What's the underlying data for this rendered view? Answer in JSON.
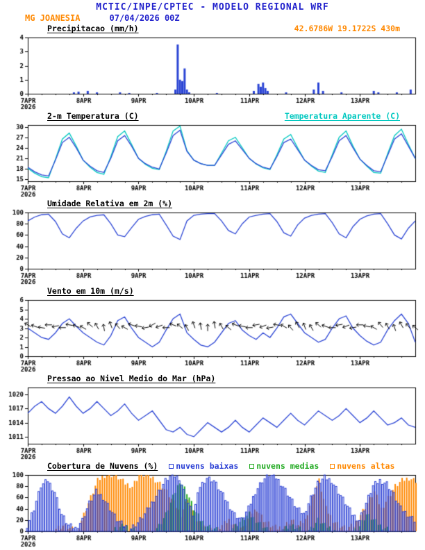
{
  "header": {
    "title": "MCTIC/INPE/CPTEC - MODELO REGIONAL WRF",
    "station": "MG JOANESIA",
    "run": "07/04/2026 00Z",
    "coords": "42.6786W 19.1722S 430m"
  },
  "colors": {
    "header_blue": "#2222cc",
    "station_orange": "#ff8800",
    "coords_orange": "#ff8800",
    "line_blue": "#2a44d4",
    "apparent_cyan": "#00c8c0",
    "cloud_green": "#22aa22",
    "cloud_orange": "#ff8800",
    "barb_black": "#000000"
  },
  "x_axis": {
    "hours": 168,
    "step": 3,
    "ticks": [
      {
        "h": 0,
        "label": "7APR",
        "sub": "2026"
      },
      {
        "h": 24,
        "label": "8APR"
      },
      {
        "h": 48,
        "label": "9APR"
      },
      {
        "h": 72,
        "label": "10APR"
      },
      {
        "h": 96,
        "label": "11APR"
      },
      {
        "h": 120,
        "label": "12APR"
      },
      {
        "h": 144,
        "label": "13APR"
      }
    ]
  },
  "chart_data": [
    {
      "type": "bar",
      "title": "Precipitacao (mm/h)",
      "ylabel": "mm/h",
      "ylim": [
        0,
        4
      ],
      "yticks": [
        0,
        1,
        2,
        3,
        4
      ],
      "color": "#2a44d4",
      "points": [
        [
          20,
          0.1
        ],
        [
          22,
          0.15
        ],
        [
          26,
          0.2
        ],
        [
          30,
          0.1
        ],
        [
          40,
          0.1
        ],
        [
          44,
          0.05
        ],
        [
          56,
          0.05
        ],
        [
          64,
          0.3
        ],
        [
          65,
          3.5
        ],
        [
          66,
          1.0
        ],
        [
          67,
          0.9
        ],
        [
          68,
          1.8
        ],
        [
          69,
          0.3
        ],
        [
          70,
          0.1
        ],
        [
          82,
          0.05
        ],
        [
          98,
          0.2
        ],
        [
          100,
          0.7
        ],
        [
          101,
          0.5
        ],
        [
          102,
          0.8
        ],
        [
          103,
          0.4
        ],
        [
          104,
          0.2
        ],
        [
          112,
          0.1
        ],
        [
          124,
          0.3
        ],
        [
          126,
          0.8
        ],
        [
          128,
          0.2
        ],
        [
          136,
          0.1
        ],
        [
          150,
          0.2
        ],
        [
          152,
          0.1
        ],
        [
          160,
          0.1
        ],
        [
          166,
          0.3
        ]
      ]
    },
    {
      "type": "line",
      "title": "2-m Temperatura (C)",
      "ylabel": "C",
      "ylim": [
        14.5,
        30.5
      ],
      "yticks": [
        15,
        18,
        21,
        24,
        27,
        30
      ],
      "series": [
        {
          "name": "2-m Temperatura (C)",
          "color": "#2a44d4",
          "values": [
            18.5,
            17.2,
            16.3,
            16.0,
            20.5,
            25.5,
            27.0,
            24.0,
            20.5,
            18.8,
            17.5,
            17.0,
            21.0,
            26.0,
            27.5,
            24.5,
            21.0,
            19.5,
            18.5,
            18.0,
            22.5,
            27.5,
            29.0,
            23.0,
            20.5,
            19.5,
            19.0,
            19.0,
            22.0,
            25.0,
            26.0,
            23.5,
            21.0,
            19.5,
            18.5,
            18.0,
            21.5,
            25.5,
            26.5,
            23.5,
            20.5,
            19.0,
            17.8,
            17.5,
            21.5,
            26.0,
            27.5,
            24.0,
            20.8,
            19.0,
            17.5,
            17.2,
            21.8,
            26.5,
            28.0,
            24.5,
            21.0
          ]
        },
        {
          "name": "Temperatura Aparente (C)",
          "color": "#00c8c0",
          "values": [
            18.2,
            16.8,
            15.8,
            15.5,
            20.8,
            26.5,
            28.2,
            24.5,
            20.5,
            18.5,
            17.0,
            16.5,
            21.5,
            27.2,
            28.8,
            25.0,
            21.0,
            19.3,
            18.2,
            17.8,
            23.0,
            28.8,
            30.2,
            23.2,
            20.5,
            19.5,
            19.0,
            19.0,
            22.5,
            26.0,
            27.0,
            24.0,
            21.0,
            19.4,
            18.3,
            17.8,
            22.0,
            26.5,
            27.8,
            24.0,
            20.5,
            18.8,
            17.4,
            17.0,
            22.0,
            27.0,
            28.8,
            24.5,
            20.8,
            18.8,
            17.0,
            16.8,
            22.3,
            27.5,
            29.3,
            25.0,
            21.0
          ]
        }
      ]
    },
    {
      "type": "line",
      "title": "Umidade Relativa em 2m (%)",
      "ylabel": "%",
      "ylim": [
        0,
        100
      ],
      "yticks": [
        0,
        20,
        40,
        60,
        80,
        100
      ],
      "series": [
        {
          "name": "Umidade Relativa",
          "color": "#2a44d4",
          "values": [
            85,
            92,
            96,
            97,
            84,
            62,
            55,
            72,
            85,
            92,
            95,
            96,
            80,
            60,
            57,
            73,
            88,
            93,
            96,
            97,
            78,
            58,
            52,
            85,
            95,
            97,
            98,
            98,
            85,
            68,
            62,
            80,
            92,
            95,
            97,
            98,
            84,
            64,
            58,
            78,
            90,
            95,
            97,
            98,
            82,
            62,
            55,
            75,
            88,
            94,
            97,
            98,
            80,
            60,
            53,
            72,
            85
          ]
        }
      ]
    },
    {
      "type": "wind",
      "title": "Vento em 10m (m/s)",
      "ylabel": "m/s",
      "ylim": [
        0,
        6
      ],
      "yticks": [
        0,
        1,
        2,
        3,
        4,
        5,
        6
      ],
      "series": [
        {
          "name": "Vento em 10m",
          "color": "#2a44d4",
          "values": [
            3.0,
            2.5,
            2.0,
            1.8,
            2.5,
            3.5,
            4.0,
            3.2,
            2.5,
            2.0,
            1.5,
            1.2,
            2.2,
            3.8,
            4.2,
            3.0,
            2.0,
            1.5,
            1.0,
            1.5,
            2.8,
            4.0,
            4.5,
            2.5,
            1.8,
            1.2,
            1.0,
            1.5,
            2.5,
            3.5,
            3.8,
            2.8,
            2.2,
            1.8,
            2.5,
            2.0,
            3.0,
            4.2,
            4.5,
            3.5,
            2.5,
            2.0,
            1.5,
            1.8,
            3.0,
            4.0,
            4.3,
            3.0,
            2.2,
            1.6,
            1.2,
            1.5,
            2.8,
            3.8,
            4.5,
            3.5,
            1.5
          ]
        }
      ],
      "barbs": {
        "y": 3.2,
        "color": "#000000",
        "dirs": [
          120,
          110,
          100,
          90,
          80,
          90,
          100,
          110,
          120,
          130,
          150,
          170,
          160,
          140,
          120,
          110,
          100,
          80,
          60,
          70,
          90,
          110,
          130,
          150,
          160,
          170,
          180,
          170,
          150,
          130,
          110,
          100,
          90,
          80,
          70,
          80,
          100,
          120,
          140,
          150,
          160,
          150,
          130,
          110,
          90,
          80,
          70,
          80,
          90,
          100,
          120,
          140,
          150,
          160,
          150,
          140,
          130
        ]
      }
    },
    {
      "type": "line",
      "title": "Pressao ao Nivel Medio do Mar (hPa)",
      "ylabel": "hPa",
      "ylim": [
        1009.5,
        1021.5
      ],
      "yticks": [
        1011,
        1014,
        1017,
        1020
      ],
      "series": [
        {
          "name": "Pressao ao Nivel Medio do Mar",
          "color": "#2a44d4",
          "values": [
            1016.0,
            1017.5,
            1018.5,
            1017.0,
            1016.0,
            1017.5,
            1019.5,
            1017.5,
            1016.0,
            1017.0,
            1018.5,
            1017.0,
            1015.5,
            1016.5,
            1018.0,
            1016.0,
            1014.5,
            1015.5,
            1016.5,
            1014.5,
            1012.5,
            1012.0,
            1013.0,
            1011.5,
            1011.0,
            1012.5,
            1014.0,
            1013.0,
            1012.0,
            1013.0,
            1014.5,
            1013.0,
            1012.0,
            1013.5,
            1015.0,
            1014.0,
            1013.0,
            1014.5,
            1016.0,
            1014.5,
            1013.5,
            1015.0,
            1016.5,
            1015.5,
            1014.5,
            1015.5,
            1017.0,
            1015.5,
            1014.0,
            1015.0,
            1016.5,
            1015.0,
            1013.5,
            1014.0,
            1015.0,
            1013.5,
            1013.0
          ]
        }
      ]
    },
    {
      "type": "cloud-bar",
      "title": "Cobertura de Nuvens (%)",
      "ylabel": "%",
      "ylim": [
        0,
        100
      ],
      "yticks": [
        0,
        20,
        40,
        60,
        80,
        100
      ],
      "series": [
        {
          "name": "nuvens baixas",
          "color": "#2a3fd4",
          "style": "outline",
          "values": [
            10,
            40,
            80,
            90,
            70,
            30,
            10,
            5,
            20,
            50,
            70,
            60,
            40,
            20,
            10,
            5,
            15,
            30,
            50,
            70,
            90,
            100,
            95,
            60,
            30,
            80,
            95,
            90,
            70,
            50,
            30,
            20,
            40,
            70,
            90,
            100,
            95,
            80,
            60,
            40,
            30,
            60,
            85,
            95,
            90,
            70,
            50,
            30,
            20,
            50,
            80,
            90,
            85,
            65,
            40,
            30,
            20
          ]
        },
        {
          "name": "nuvens medias",
          "color": "#22aa22",
          "style": "fill",
          "values": [
            0,
            0,
            0,
            0,
            0,
            0,
            0,
            0,
            0,
            0,
            0,
            0,
            0,
            5,
            10,
            5,
            0,
            0,
            0,
            10,
            30,
            60,
            90,
            70,
            40,
            20,
            10,
            5,
            0,
            0,
            10,
            20,
            30,
            20,
            10,
            0,
            0,
            5,
            10,
            5,
            0,
            5,
            20,
            10,
            5,
            0,
            0,
            0,
            10,
            30,
            20,
            10,
            5,
            0,
            0,
            0,
            0
          ]
        },
        {
          "name": "nuvens altas",
          "color": "#ff8800",
          "style": "fill",
          "values": [
            0,
            0,
            0,
            0,
            5,
            10,
            5,
            0,
            30,
            60,
            90,
            100,
            100,
            95,
            85,
            80,
            100,
            100,
            95,
            85,
            70,
            50,
            30,
            60,
            20,
            10,
            5,
            0,
            10,
            20,
            10,
            5,
            30,
            40,
            20,
            10,
            5,
            10,
            20,
            10,
            20,
            60,
            90,
            40,
            20,
            10,
            5,
            10,
            30,
            50,
            70,
            40,
            60,
            80,
            90,
            95,
            90
          ]
        }
      ]
    }
  ]
}
